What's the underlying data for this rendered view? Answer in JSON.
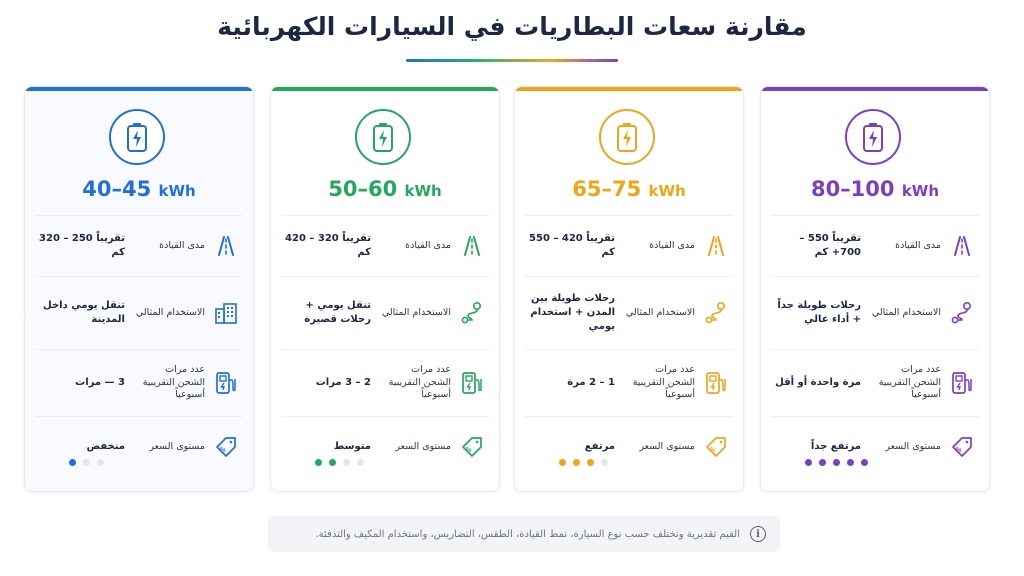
{
  "title": "مقارنة سعات البطاريات في السيارات الكهربائية",
  "labels": {
    "range": "مدى القيادة",
    "usage": "الاستخدام المثالي",
    "charges": "عدد مرات الشحن التقريبية أسبوعياً",
    "price": "مستوى السعر"
  },
  "cards": [
    {
      "color": "#1f6fdc",
      "capacity": "40–45",
      "unit": "kWh",
      "range": "تقريباً 250 – 320 كم",
      "usage": "تنقل يومي داخل المدينة",
      "charges": "3 — مرات",
      "price": "منخفض",
      "price_level": 1,
      "price_max": 3,
      "usage_icon": "building-icon"
    },
    {
      "color": "#23a85e",
      "capacity": "50–60",
      "unit": "kWh",
      "range": "تقريباً 320 – 420 كم",
      "usage": "تنقل يومي + رحلات قصيرة",
      "charges": "2 – 3 مرات",
      "price": "متوسط",
      "price_level": 2,
      "price_max": 4,
      "usage_icon": "route-icon"
    },
    {
      "color": "#f2a417",
      "capacity": "65–75",
      "unit": "kWh",
      "range": "تقريباً 420 – 550 كم",
      "usage": "رحلات طويلة بين المدن + استخدام يومي",
      "charges": "1 – 2 مرة",
      "price": "مرتفع",
      "price_level": 3,
      "price_max": 4,
      "usage_icon": "route-icon"
    },
    {
      "color": "#7b3fc7",
      "capacity": "80–100",
      "unit": "kWh",
      "range": "تقريباً 550 – 700+ كم",
      "usage": "رحلات طويلة جداً + أداء عالي",
      "charges": "مرة واحدة أو أقل",
      "price": "مرتفع جداً",
      "price_level": 5,
      "price_max": 5,
      "usage_icon": "route-icon"
    }
  ],
  "note": "القيم تقديرية وتختلف حسب نوع السيارة، نمط القيادة، الطقس، التضاريس، واستخدام المكيف والتدفئة.",
  "info_icon": "i"
}
